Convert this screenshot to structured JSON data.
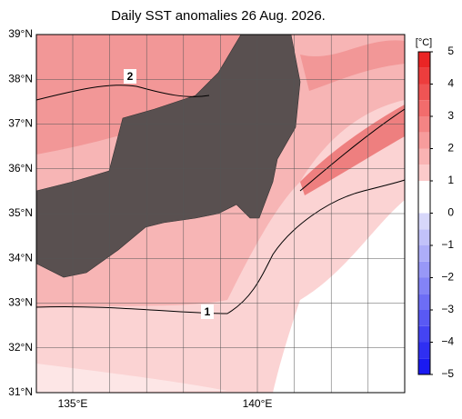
{
  "title": "Daily SST anomalies 26 Aug. 2026.",
  "lat_labels": [
    "39°N",
    "38°N",
    "37°N",
    "36°N",
    "35°N",
    "34°N",
    "33°N",
    "32°N",
    "31°N"
  ],
  "lon_labels": [
    "135°E",
    "140°E"
  ],
  "colorbar": {
    "unit": "[°C]",
    "ticks": [
      {
        "value": 5,
        "label": "5"
      },
      {
        "value": 4,
        "label": "4"
      },
      {
        "value": 3,
        "label": "3"
      },
      {
        "value": 2,
        "label": "2"
      },
      {
        "value": 1,
        "label": "1"
      },
      {
        "value": 0,
        "label": "0"
      },
      {
        "value": -1,
        "label": "−1"
      },
      {
        "value": -2,
        "label": "−2"
      },
      {
        "value": -3,
        "label": "−3"
      },
      {
        "value": -4,
        "label": "−4"
      },
      {
        "value": -5,
        "label": "−5"
      }
    ]
  },
  "contour_labels": [
    "2",
    "1"
  ]
}
